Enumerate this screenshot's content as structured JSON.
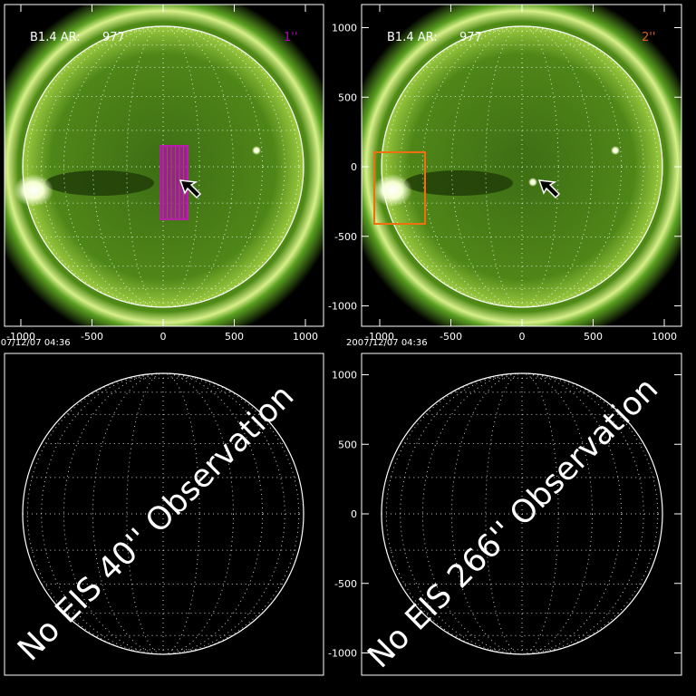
{
  "panels": [
    {
      "header": "B1.4 AR:",
      "region": "977",
      "label": "1''",
      "label_color": "#b000b0",
      "date": "2007/12/07 04:36",
      "x_ticks": [
        -1000,
        -500,
        0,
        500,
        1000
      ]
    },
    {
      "header": "B1.4 AR:",
      "region": "977",
      "label": "2''",
      "label_color": "#e06010",
      "date": "2007/12/07 04:36",
      "x_ticks": [
        -1000,
        -500,
        0,
        500,
        1000
      ],
      "y_ticks": [
        1000,
        500,
        0,
        -500,
        -1000
      ]
    },
    {
      "message": "No EIS 40'' Observation"
    },
    {
      "message": "No EIS 266'' Observation",
      "y_ticks": [
        1000,
        500,
        0,
        -500,
        -1000
      ]
    }
  ]
}
